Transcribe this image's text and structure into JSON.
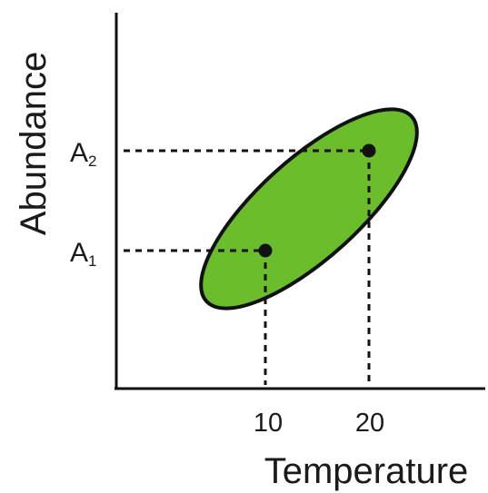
{
  "figure": {
    "xlabel": "Temperature",
    "ylabel": "Abundance",
    "x_ticks": [
      "10",
      "20"
    ],
    "y_ticks": [
      {
        "main": "A",
        "sub": "1"
      },
      {
        "main": "A",
        "sub": "2"
      }
    ],
    "ellipse_color": "#6cbd2c",
    "outline_color": "#111111",
    "points": [
      {
        "x_label": "10",
        "y_label": "A1"
      },
      {
        "x_label": "20",
        "y_label": "A2"
      }
    ]
  }
}
